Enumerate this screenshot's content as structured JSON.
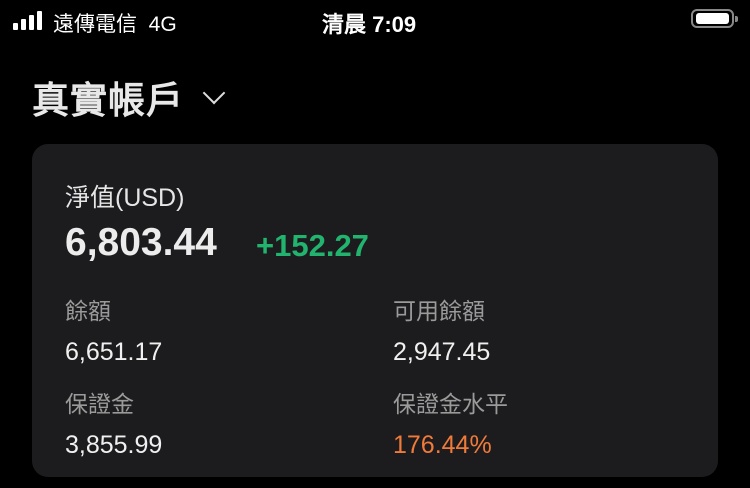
{
  "status_bar": {
    "carrier": "遠傳電信",
    "network": "4G",
    "time": "清晨 7:09",
    "signal_bars": 4
  },
  "header": {
    "account_title": "真實帳戶",
    "dropdown_icon": "chevron-down-icon"
  },
  "summary": {
    "net_value_label": "淨值(USD)",
    "net_value": "6,803.44",
    "net_change": "+152.27",
    "items": [
      {
        "label": "餘額",
        "value": "6,651.17"
      },
      {
        "label": "可用餘額",
        "value": "2,947.45"
      },
      {
        "label": "保證金",
        "value": "3,855.99"
      },
      {
        "label": "保證金水平",
        "value": "176.44%"
      }
    ]
  },
  "colors": {
    "positive": "#22b46e",
    "warning": "#f07a3a",
    "card": "#1c1c1e"
  }
}
